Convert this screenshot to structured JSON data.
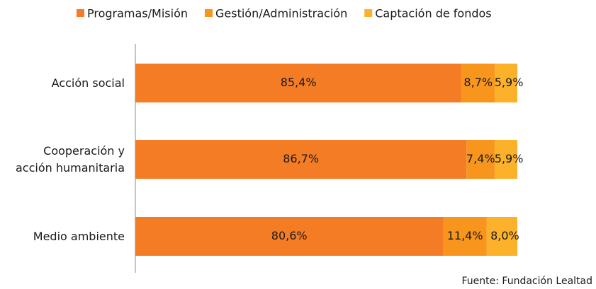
{
  "chart_data": {
    "type": "stacked-bar-horizontal",
    "categories": [
      "Acción social",
      "Cooperación y\nacción humanitaria",
      "Medio ambiente"
    ],
    "series": [
      {
        "name": "Programas/Misión",
        "color": "#f47c25",
        "values": [
          85.4,
          86.7,
          80.6
        ],
        "value_labels": [
          "85,4%",
          "86,7%",
          "80,6%"
        ]
      },
      {
        "name": "Gestión/Administración",
        "color": "#f7951c",
        "values": [
          8.7,
          7.4,
          11.4
        ],
        "value_labels": [
          "8,7%",
          "7,4%",
          "11,4%"
        ]
      },
      {
        "name": "Captación de fondos",
        "color": "#fbb12a",
        "values": [
          5.9,
          5.9,
          8.0
        ],
        "value_labels": [
          "5,9%",
          "5,9%",
          "8,0%"
        ]
      }
    ],
    "xlim": [
      0,
      100
    ],
    "source": "Fuente: Fundación Lealtad"
  }
}
